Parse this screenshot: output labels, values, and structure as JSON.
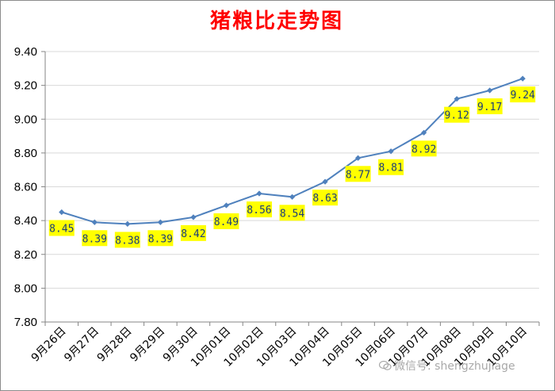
{
  "chart_data": {
    "type": "line",
    "title": "猪粮比走势图",
    "xlabel": "",
    "ylabel": "",
    "categories": [
      "9月26日",
      "9月27日",
      "9月28日",
      "9月29日",
      "9月30日",
      "10月01日",
      "10月02日",
      "10月03日",
      "10月04日",
      "10月05日",
      "10月06日",
      "10月07日",
      "10月08日",
      "10月09日",
      "10月10日"
    ],
    "series": [
      {
        "values": [
          8.45,
          8.39,
          8.38,
          8.39,
          8.42,
          8.49,
          8.56,
          8.54,
          8.63,
          8.77,
          8.81,
          8.92,
          9.12,
          9.17,
          9.24
        ]
      }
    ],
    "ylim": [
      7.8,
      9.4
    ],
    "yticks": [
      "7.80",
      "8.00",
      "8.20",
      "8.40",
      "8.60",
      "8.80",
      "9.00",
      "9.20",
      "9.40"
    ],
    "data_labels": [
      "8.45",
      "8.39",
      "8.38",
      "8.39",
      "8.42",
      "8.49",
      "8.56",
      "8.54",
      "8.63",
      "8.77",
      "8.81",
      "8.92",
      "9.12",
      "9.17",
      "9.24"
    ],
    "grid": true,
    "legend": "none",
    "colors": {
      "line": "#4f81bd",
      "marker": "#4f81bd",
      "label_bg": "#ffff00",
      "title": "#ff0000",
      "grid": "#d9d9d9"
    }
  },
  "watermark": {
    "icon": "wechat-icon",
    "text": "微信号: shengzhujiage"
  }
}
